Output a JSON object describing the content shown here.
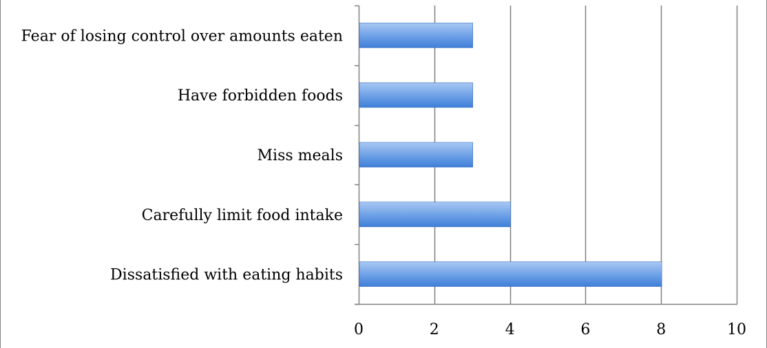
{
  "chart_data": {
    "type": "bar",
    "orientation": "horizontal",
    "categories": [
      "Fear of losing control over amounts eaten",
      "Have forbidden foods",
      "Miss meals",
      "Carefully limit food intake",
      "Dissatisfied with eating habits"
    ],
    "values": [
      3,
      3,
      3,
      4,
      8
    ],
    "xlim": [
      0,
      10
    ],
    "xticks": [
      "0",
      "2",
      "4",
      "6",
      "8",
      "10"
    ],
    "title": "",
    "xlabel": "",
    "ylabel": "",
    "grid": "vertical",
    "legend": "none",
    "colors": {
      "bar_top": "#a9c8f3",
      "bar_bottom": "#3f7fd8",
      "bar_edge": "#3a70c0",
      "grid": "#808080",
      "axis": "#808080"
    }
  }
}
